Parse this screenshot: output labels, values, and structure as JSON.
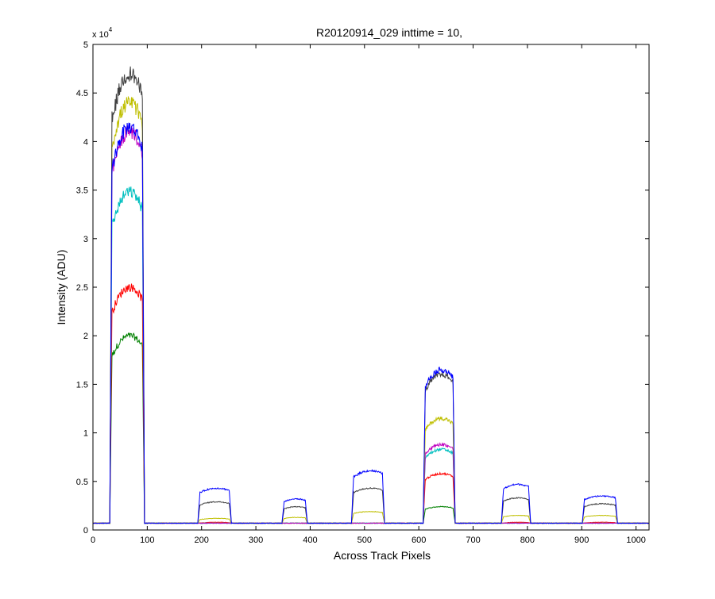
{
  "chart_data": {
    "type": "line",
    "title": "R20120914_029 inttime = 10,",
    "xlabel": "Across Track Pixels",
    "ylabel": "Intensity (ADU)",
    "xlim": [
      0,
      1024
    ],
    "ylim": [
      0,
      50000
    ],
    "y_exponent": {
      "base": "x 10",
      "power": "4"
    },
    "xticks": [
      0,
      100,
      200,
      300,
      400,
      500,
      600,
      700,
      800,
      900,
      1000
    ],
    "yticks": [
      0,
      5000,
      10000,
      15000,
      20000,
      25000,
      30000,
      35000,
      40000,
      45000,
      50000
    ],
    "ytick_labels": [
      "0",
      "0.5",
      "1",
      "1.5",
      "2",
      "2.5",
      "3",
      "3.5",
      "4",
      "4.5",
      "5"
    ],
    "grid": false,
    "legend": "none",
    "baseline": 700,
    "segments": [
      {
        "start": 31,
        "end": 95
      },
      {
        "start": 193,
        "end": 255
      },
      {
        "start": 348,
        "end": 395
      },
      {
        "start": 476,
        "end": 537
      },
      {
        "start": 608,
        "end": 667
      },
      {
        "start": 752,
        "end": 806
      },
      {
        "start": 901,
        "end": 966
      }
    ],
    "series": [
      {
        "color": "#008000",
        "levels": [
          20000,
          700,
          700,
          700,
          2400,
          700,
          700
        ]
      },
      {
        "color": "#ff0000",
        "levels": [
          25000,
          800,
          700,
          700,
          5800,
          800,
          800
        ]
      },
      {
        "color": "#00bfbf",
        "levels": [
          34800,
          700,
          700,
          700,
          8300,
          700,
          700
        ]
      },
      {
        "color": "#bf00bf",
        "levels": [
          41000,
          700,
          700,
          700,
          8800,
          700,
          700
        ]
      },
      {
        "color": "#bfbf00",
        "levels": [
          44000,
          1200,
          1300,
          1900,
          11500,
          1500,
          1500
        ]
      },
      {
        "color": "#404040",
        "levels": [
          47000,
          2900,
          2400,
          4300,
          16000,
          3300,
          2700
        ]
      },
      {
        "color": "#0000ff",
        "levels": [
          41500,
          4300,
          3200,
          6100,
          16500,
          4700,
          3500
        ]
      }
    ]
  }
}
